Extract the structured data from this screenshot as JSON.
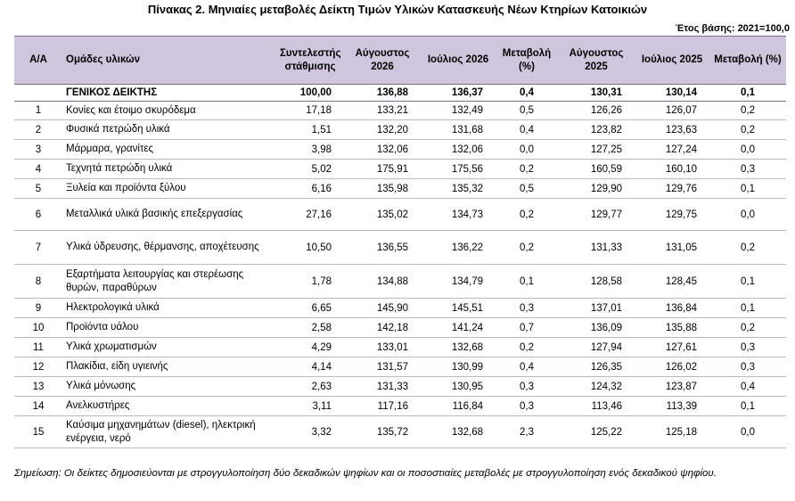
{
  "title": "Πίνακας 2. Μηνιαίες μεταβολές Δείκτη Τιμών Υλικών Κατασκευής Νέων Κτηρίων Κατοικιών",
  "base_year": "Έτος βάσης: 2021=100,0",
  "headers": {
    "aa": "Α/Α",
    "group": "Ομάδες υλικών",
    "weight": "Συντελεστής στάθμισης",
    "aug26": "Αύγουστος 2026",
    "jul26": "Ιούλιος 2026",
    "chg26": "Μεταβολή (%)",
    "aug25": "Αύγουστος 2025",
    "jul25": "Ιούλιος 2025",
    "chg25": "Μεταβολή (%)"
  },
  "total": {
    "aa": "",
    "group": "ΓΕΝΙΚΟΣ ΔΕΙΚΤΗΣ",
    "weight": "100,00",
    "aug26": "136,88",
    "jul26": "136,37",
    "chg26": "0,4",
    "aug25": "130,31",
    "jul25": "130,14",
    "chg25": "0,1"
  },
  "rows": [
    {
      "aa": "1",
      "group": "Κονίες και έτοιμο σκυρόδεμα",
      "weight": "17,18",
      "aug26": "133,21",
      "jul26": "132,49",
      "chg26": "0,5",
      "aug25": "126,26",
      "jul25": "126,07",
      "chg25": "0,2"
    },
    {
      "aa": "2",
      "group": "Φυσικά πετρώδη υλικά",
      "weight": "1,51",
      "aug26": "132,20",
      "jul26": "131,68",
      "chg26": "0,4",
      "aug25": "123,82",
      "jul25": "123,63",
      "chg25": "0,2"
    },
    {
      "aa": "3",
      "group": "Μάρμαρα, γρανίτες",
      "weight": "3,98",
      "aug26": "132,06",
      "jul26": "132,06",
      "chg26": "0,0",
      "aug25": "127,25",
      "jul25": "127,24",
      "chg25": "0,0"
    },
    {
      "aa": "4",
      "group": "Τεχνητά πετρώδη υλικά",
      "weight": "5,02",
      "aug26": "175,91",
      "jul26": "175,56",
      "chg26": "0,2",
      "aug25": "160,59",
      "jul25": "160,10",
      "chg25": "0,3"
    },
    {
      "aa": "5",
      "group": "Ξυλεία και προϊόντα ξύλου",
      "weight": "6,16",
      "aug26": "135,98",
      "jul26": "135,32",
      "chg26": "0,5",
      "aug25": "129,90",
      "jul25": "129,76",
      "chg25": "0,1"
    },
    {
      "aa": "6",
      "group": "Μεταλλικά υλικά βασικής επεξεργασίας",
      "weight": "27,16",
      "aug26": "135,02",
      "jul26": "134,73",
      "chg26": "0,2",
      "aug25": "129,77",
      "jul25": "129,75",
      "chg25": "0,0"
    },
    {
      "aa": "7",
      "group": "Υλικά ύδρευσης, θέρμανσης, αποχέτευσης",
      "weight": "10,50",
      "aug26": "136,55",
      "jul26": "136,22",
      "chg26": "0,2",
      "aug25": "131,33",
      "jul25": "131,05",
      "chg25": "0,2"
    },
    {
      "aa": "8",
      "group": "Εξαρτήματα λειτουργίας και στερέωσης θυρών, παραθύρων",
      "weight": "1,78",
      "aug26": "134,88",
      "jul26": "134,79",
      "chg26": "0,1",
      "aug25": "128,58",
      "jul25": "128,45",
      "chg25": "0,1"
    },
    {
      "aa": "9",
      "group": "Ηλεκτρολογικά υλικά",
      "weight": "6,65",
      "aug26": "145,90",
      "jul26": "145,51",
      "chg26": "0,3",
      "aug25": "137,01",
      "jul25": "136,84",
      "chg25": "0,1"
    },
    {
      "aa": "10",
      "group": "Προϊόντα υάλου",
      "weight": "2,58",
      "aug26": "142,18",
      "jul26": "141,24",
      "chg26": "0,7",
      "aug25": "136,09",
      "jul25": "135,88",
      "chg25": "0,2"
    },
    {
      "aa": "11",
      "group": "Υλικά χρωματισμών",
      "weight": "4,29",
      "aug26": "133,01",
      "jul26": "132,68",
      "chg26": "0,2",
      "aug25": "127,94",
      "jul25": "127,61",
      "chg25": "0,3"
    },
    {
      "aa": "12",
      "group": "Πλακίδια, είδη υγιεινής",
      "weight": "4,14",
      "aug26": "131,57",
      "jul26": "130,99",
      "chg26": "0,4",
      "aug25": "126,35",
      "jul25": "126,02",
      "chg25": "0,3"
    },
    {
      "aa": "13",
      "group": "Υλικά μόνωσης",
      "weight": "2,63",
      "aug26": "131,33",
      "jul26": "130,95",
      "chg26": "0,3",
      "aug25": "124,32",
      "jul25": "123,87",
      "chg25": "0,4"
    },
    {
      "aa": "14",
      "group": "Ανελκυστήρες",
      "weight": "3,11",
      "aug26": "117,16",
      "jul26": "116,84",
      "chg26": "0,3",
      "aug25": "113,46",
      "jul25": "113,39",
      "chg25": "0,1"
    },
    {
      "aa": "15",
      "group": "Καύσιμα μηχανημάτων (diesel), ηλεκτρική ενέργεια, νερό",
      "weight": "3,32",
      "aug26": "135,72",
      "jul26": "132,68",
      "chg26": "2,3",
      "aug25": "125,22",
      "jul25": "125,18",
      "chg25": "0,0"
    }
  ],
  "note": "Σημείωση: Οι δείκτες δημοσιεύονται με στρογγυλοποίηση δύο δεκαδικών ψηφίων και οι ποσοστιαίες μεταβολές με στρογγυλοποίηση ενός δεκαδικού ψηφίου."
}
